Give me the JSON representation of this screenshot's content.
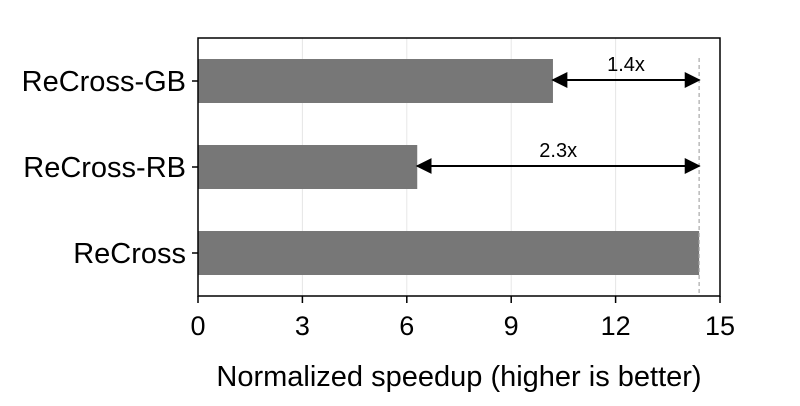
{
  "chart_data": {
    "type": "bar",
    "orientation": "horizontal",
    "categories": [
      "ReCross-GB",
      "ReCross-RB",
      "ReCross"
    ],
    "values": [
      10.2,
      6.3,
      14.4
    ],
    "xlabel": "Normalized speedup (higher is better)",
    "ylabel": "",
    "xlim": [
      0,
      15
    ],
    "xticks": [
      0,
      3,
      6,
      9,
      12,
      15
    ],
    "grid": "vertical",
    "bar_color": "#777777",
    "annotations": [
      {
        "category": "ReCross-GB",
        "label": "1.4x",
        "from": 10.2,
        "to": 14.4
      },
      {
        "category": "ReCross-RB",
        "label": "2.3x",
        "from": 6.3,
        "to": 14.4
      }
    ],
    "reference_line": 14.4
  }
}
